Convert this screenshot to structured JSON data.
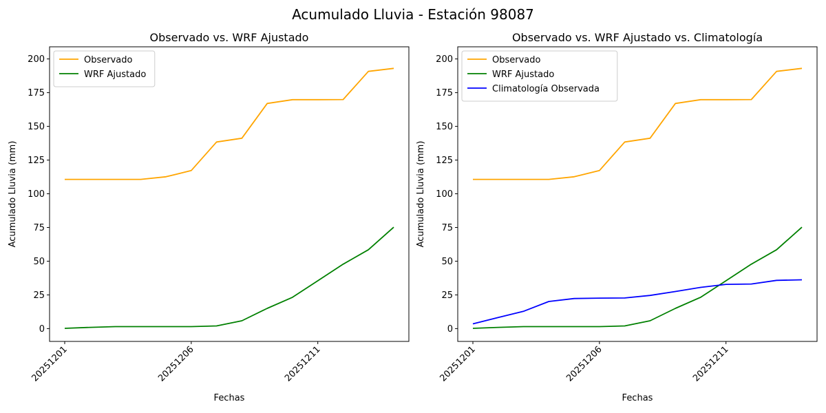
{
  "figure": {
    "suptitle": "Acumulado Lluvia - Estación 98087"
  },
  "chart_data": [
    {
      "type": "line",
      "title": "Observado vs. WRF Ajustado",
      "xlabel": "Fechas",
      "ylabel": "Acumulado Lluvia (mm)",
      "x": [
        "20251201",
        "20251202",
        "20251203",
        "20251204",
        "20251205",
        "20251206",
        "20251207",
        "20251208",
        "20251209",
        "20251210",
        "20251211",
        "20251212",
        "20251213",
        "20251214"
      ],
      "xticks": [
        "20251201",
        "20251206",
        "20251211"
      ],
      "yticks": [
        0,
        25,
        50,
        75,
        100,
        125,
        150,
        175,
        200
      ],
      "ylim": [
        -9.5,
        209
      ],
      "legend": "top-left",
      "grid": false,
      "series": [
        {
          "name": "Observado",
          "color": "#ffa500",
          "values": [
            110.7,
            110.7,
            110.7,
            110.7,
            112.6,
            117.2,
            138.4,
            141.2,
            167.0,
            169.8,
            169.8,
            169.9,
            190.8,
            193.0
          ]
        },
        {
          "name": "WRF Ajustado",
          "color": "#008000",
          "values": [
            0.2,
            0.9,
            1.5,
            1.5,
            1.5,
            1.5,
            2.0,
            5.8,
            15.0,
            23.2,
            35.5,
            47.8,
            58.5,
            75.2
          ]
        }
      ]
    },
    {
      "type": "line",
      "title": "Observado vs. WRF Ajustado vs. Climatología",
      "xlabel": "Fechas",
      "ylabel": "Acumulado Lluvia (mm)",
      "x": [
        "20251201",
        "20251202",
        "20251203",
        "20251204",
        "20251205",
        "20251206",
        "20251207",
        "20251208",
        "20251209",
        "20251210",
        "20251211",
        "20251212",
        "20251213",
        "20251214"
      ],
      "xticks": [
        "20251201",
        "20251206",
        "20251211"
      ],
      "yticks": [
        0,
        25,
        50,
        75,
        100,
        125,
        150,
        175,
        200
      ],
      "ylim": [
        -9.5,
        209
      ],
      "legend": "top-left",
      "grid": false,
      "series": [
        {
          "name": "Observado",
          "color": "#ffa500",
          "values": [
            110.7,
            110.7,
            110.7,
            110.7,
            112.6,
            117.2,
            138.4,
            141.2,
            167.0,
            169.8,
            169.8,
            169.9,
            190.8,
            193.0
          ]
        },
        {
          "name": "WRF Ajustado",
          "color": "#008000",
          "values": [
            0.2,
            0.9,
            1.5,
            1.5,
            1.5,
            1.5,
            2.0,
            5.8,
            15.0,
            23.2,
            35.5,
            47.8,
            58.5,
            75.2
          ]
        },
        {
          "name": "Climatología Observada",
          "color": "#0000ff",
          "values": [
            3.5,
            8.2,
            12.8,
            20.1,
            22.3,
            22.6,
            22.7,
            24.6,
            27.5,
            30.6,
            32.8,
            33.1,
            35.8,
            36.2
          ]
        }
      ]
    }
  ]
}
